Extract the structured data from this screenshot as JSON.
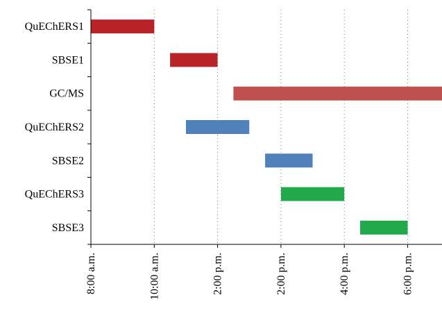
{
  "chart_data": {
    "type": "gantt",
    "title": "",
    "xlabel": "",
    "ylabel": "",
    "x_ticks": [
      "8:00 a.m.",
      "10:00 a.m.",
      "2:00 p.m.",
      "2:00 p.m.",
      "4:00 p.m.",
      "6:00 p.m."
    ],
    "x_range_ticks": [
      0,
      6
    ],
    "grid_x": true,
    "categories": [
      "QuEChERS1",
      "SBSE1",
      "GC/MS",
      "QuEChERS2",
      "SBSE2",
      "QuEChERS3",
      "SBSE3"
    ],
    "tasks": [
      {
        "name": "QuEChERS1",
        "start": 0.0,
        "end": 1.0,
        "color": "#b82329"
      },
      {
        "name": "SBSE1",
        "start": 1.25,
        "end": 2.0,
        "color": "#b82329"
      },
      {
        "name": "GC/MS",
        "start": 2.25,
        "end": 5.55,
        "color": "#c0504d"
      },
      {
        "name": "QuEChERS2",
        "start": 1.5,
        "end": 2.5,
        "color": "#4f81bd"
      },
      {
        "name": "SBSE2",
        "start": 2.75,
        "end": 3.5,
        "color": "#4f81bd"
      },
      {
        "name": "QuEChERS3",
        "start": 3.0,
        "end": 4.0,
        "color": "#21a84a"
      },
      {
        "name": "SBSE3",
        "start": 4.25,
        "end": 5.0,
        "color": "#21a84a"
      }
    ]
  }
}
